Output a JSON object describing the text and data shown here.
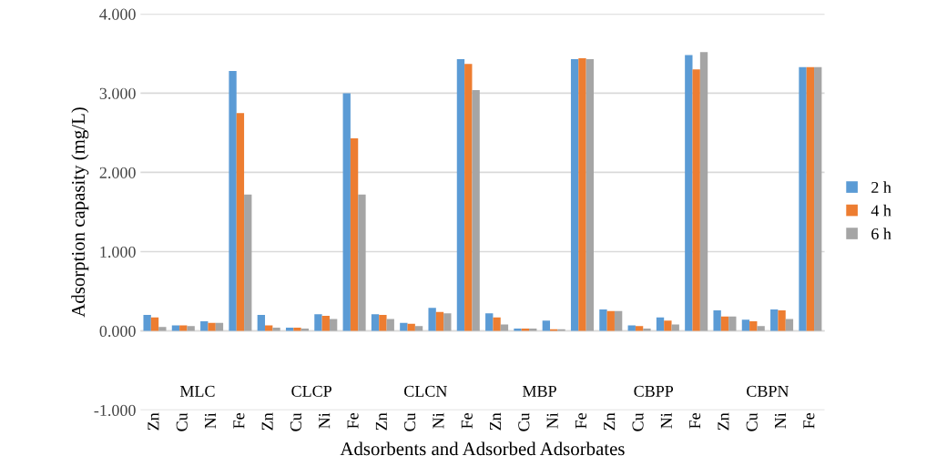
{
  "chart_data": {
    "type": "bar",
    "xlabel": "Adsorbents and Adsorbed Adsorbates",
    "ylabel": "Adsorption capasity (mg/L)",
    "categories": [
      "Zn",
      "Cu",
      "Ni",
      "Fe",
      "Zn",
      "Cu",
      "Ni",
      "Fe",
      "Zn",
      "Cu",
      "Ni",
      "Fe",
      "Zn",
      "Cu",
      "Ni",
      "Fe",
      "Zn",
      "Cu",
      "Ni",
      "Fe",
      "Zn",
      "Cu",
      "Ni",
      "Fe"
    ],
    "series": [
      {
        "name": "2 h",
        "color": "#5b9bd5",
        "values": [
          0.2,
          0.07,
          0.12,
          3.28,
          0.2,
          0.04,
          0.21,
          3.0,
          0.21,
          0.1,
          0.29,
          3.43,
          0.22,
          0.03,
          0.13,
          3.43,
          0.27,
          0.07,
          0.17,
          3.48,
          0.26,
          0.14,
          0.27,
          3.33
        ]
      },
      {
        "name": "4 h",
        "color": "#ed7d31",
        "values": [
          0.17,
          0.07,
          0.1,
          2.75,
          0.07,
          0.04,
          0.19,
          2.43,
          0.2,
          0.09,
          0.24,
          3.37,
          0.17,
          0.03,
          0.02,
          3.44,
          0.25,
          0.06,
          0.13,
          3.3,
          0.18,
          0.12,
          0.26,
          3.33
        ]
      },
      {
        "name": "6 h",
        "color": "#a5a5a5",
        "values": [
          0.05,
          0.06,
          0.1,
          1.72,
          0.04,
          0.03,
          0.15,
          1.72,
          0.15,
          0.06,
          0.22,
          3.04,
          0.08,
          0.03,
          0.02,
          3.43,
          0.25,
          0.03,
          0.08,
          3.52,
          0.18,
          0.06,
          0.15,
          3.33
        ]
      }
    ],
    "annotations": [
      "MLC",
      "CLCP",
      "CLCN",
      "MBP",
      "CBPP",
      "CBPN"
    ],
    "ylim": [
      -1,
      4
    ],
    "yticks": [
      {
        "value": -1,
        "label": "-1.000"
      },
      {
        "value": 0,
        "label": "0.000"
      },
      {
        "value": 1,
        "label": "1.000"
      },
      {
        "value": 2,
        "label": "2.000"
      },
      {
        "value": 3,
        "label": "3.000"
      },
      {
        "value": 4,
        "label": "4.000"
      }
    ],
    "grid": "y",
    "legend": "right"
  }
}
